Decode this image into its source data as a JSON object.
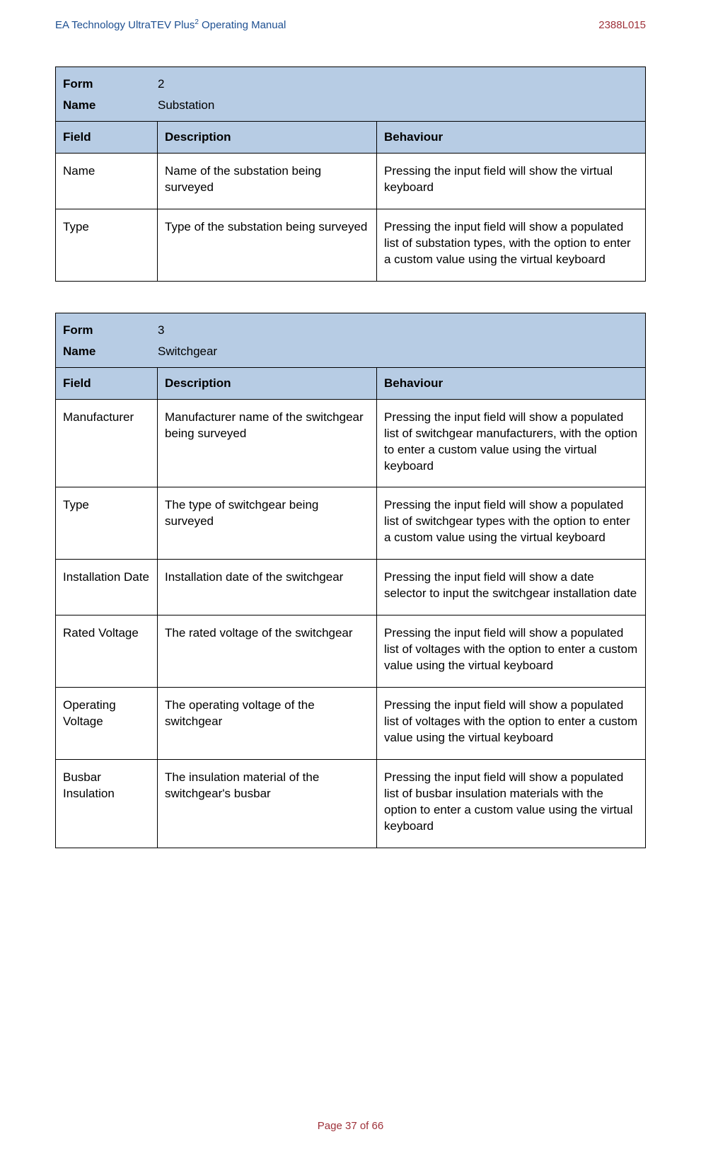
{
  "header": {
    "title_prefix": "EA Technology UltraTEV Plus",
    "title_exponent": "2",
    "title_suffix": " Operating Manual",
    "doc_code": "2388L015"
  },
  "labels": {
    "form": "Form",
    "name": "Name",
    "field": "Field",
    "description": "Description",
    "behaviour": "Behaviour"
  },
  "tables": [
    {
      "form_number": "2",
      "form_name": "Substation",
      "rows": [
        {
          "field": "Name",
          "description": "Name of the substation being surveyed",
          "behaviour": "Pressing the input field will show the virtual keyboard"
        },
        {
          "field": "Type",
          "description": "Type of the substation being surveyed",
          "behaviour": "Pressing the input field will show a populated list of substation types, with the option to enter a custom value using the virtual keyboard"
        }
      ]
    },
    {
      "form_number": "3",
      "form_name": "Switchgear",
      "rows": [
        {
          "field": "Manufacturer",
          "description": "Manufacturer name of the switchgear being surveyed",
          "behaviour": "Pressing the input field will show a populated list of switchgear manufacturers, with the option to enter a custom value using the virtual keyboard"
        },
        {
          "field": "Type",
          "description": "The type of switchgear being surveyed",
          "behaviour": "Pressing the input field will show a populated list of switchgear types with the option to enter a custom value using the virtual keyboard"
        },
        {
          "field": "Installation Date",
          "description": "Installation date of the switchgear",
          "behaviour": "Pressing the input field will show a date selector to input the switchgear installation date"
        },
        {
          "field": "Rated Voltage",
          "description": "The rated voltage of the switchgear",
          "behaviour": "Pressing the input field will show a populated list of voltages with the option to enter a custom value using the virtual keyboard"
        },
        {
          "field": "Operating Voltage",
          "description": "The operating voltage of the switchgear",
          "behaviour": "Pressing the input field will show a populated list of voltages with the option to enter a custom value using the virtual keyboard"
        },
        {
          "field": "Busbar Insulation",
          "description": "The insulation material of the switchgear's busbar",
          "behaviour": "Pressing the input field will show a populated list of busbar insulation materials with the option to enter a custom value using the virtual keyboard"
        }
      ]
    }
  ],
  "footer": {
    "text": "Page 37 of 66"
  }
}
